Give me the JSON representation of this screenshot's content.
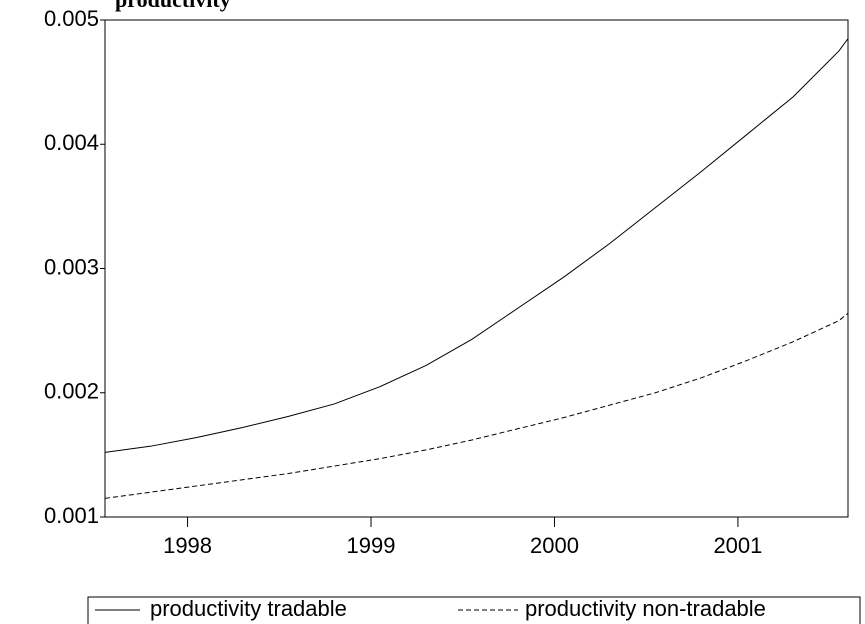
{
  "chart_data": {
    "type": "line",
    "title": "productivity",
    "x": [
      1997.55,
      1997.8,
      1998.05,
      1998.3,
      1998.55,
      1998.8,
      1999.05,
      1999.3,
      1999.55,
      1999.8,
      2000.05,
      2000.3,
      2000.55,
      2000.8,
      2001.05,
      2001.3,
      2001.55,
      2001.6
    ],
    "xlim": [
      1997.55,
      2001.6
    ],
    "xticks": [
      1998,
      1999,
      2000,
      2001
    ],
    "ylim": [
      0.001,
      0.005
    ],
    "yticks": [
      0.001,
      0.002,
      0.003,
      0.004,
      0.005
    ],
    "series": [
      {
        "name": "productivity tradable",
        "color": "#000000",
        "dash": "solid",
        "values": [
          0.00152,
          0.00157,
          0.00164,
          0.00172,
          0.00181,
          0.00191,
          0.00205,
          0.00222,
          0.00243,
          0.00268,
          0.00293,
          0.0032,
          0.00349,
          0.00378,
          0.00408,
          0.00438,
          0.00475,
          0.00485
        ]
      },
      {
        "name": "productivity non-tradable",
        "color": "#000000",
        "dash": "dashed",
        "values": [
          0.00115,
          0.0012,
          0.00125,
          0.0013,
          0.00135,
          0.00141,
          0.00147,
          0.00154,
          0.00162,
          0.00171,
          0.0018,
          0.0019,
          0.002,
          0.00212,
          0.00226,
          0.00241,
          0.00258,
          0.00264
        ]
      }
    ],
    "legend": "bottom"
  }
}
